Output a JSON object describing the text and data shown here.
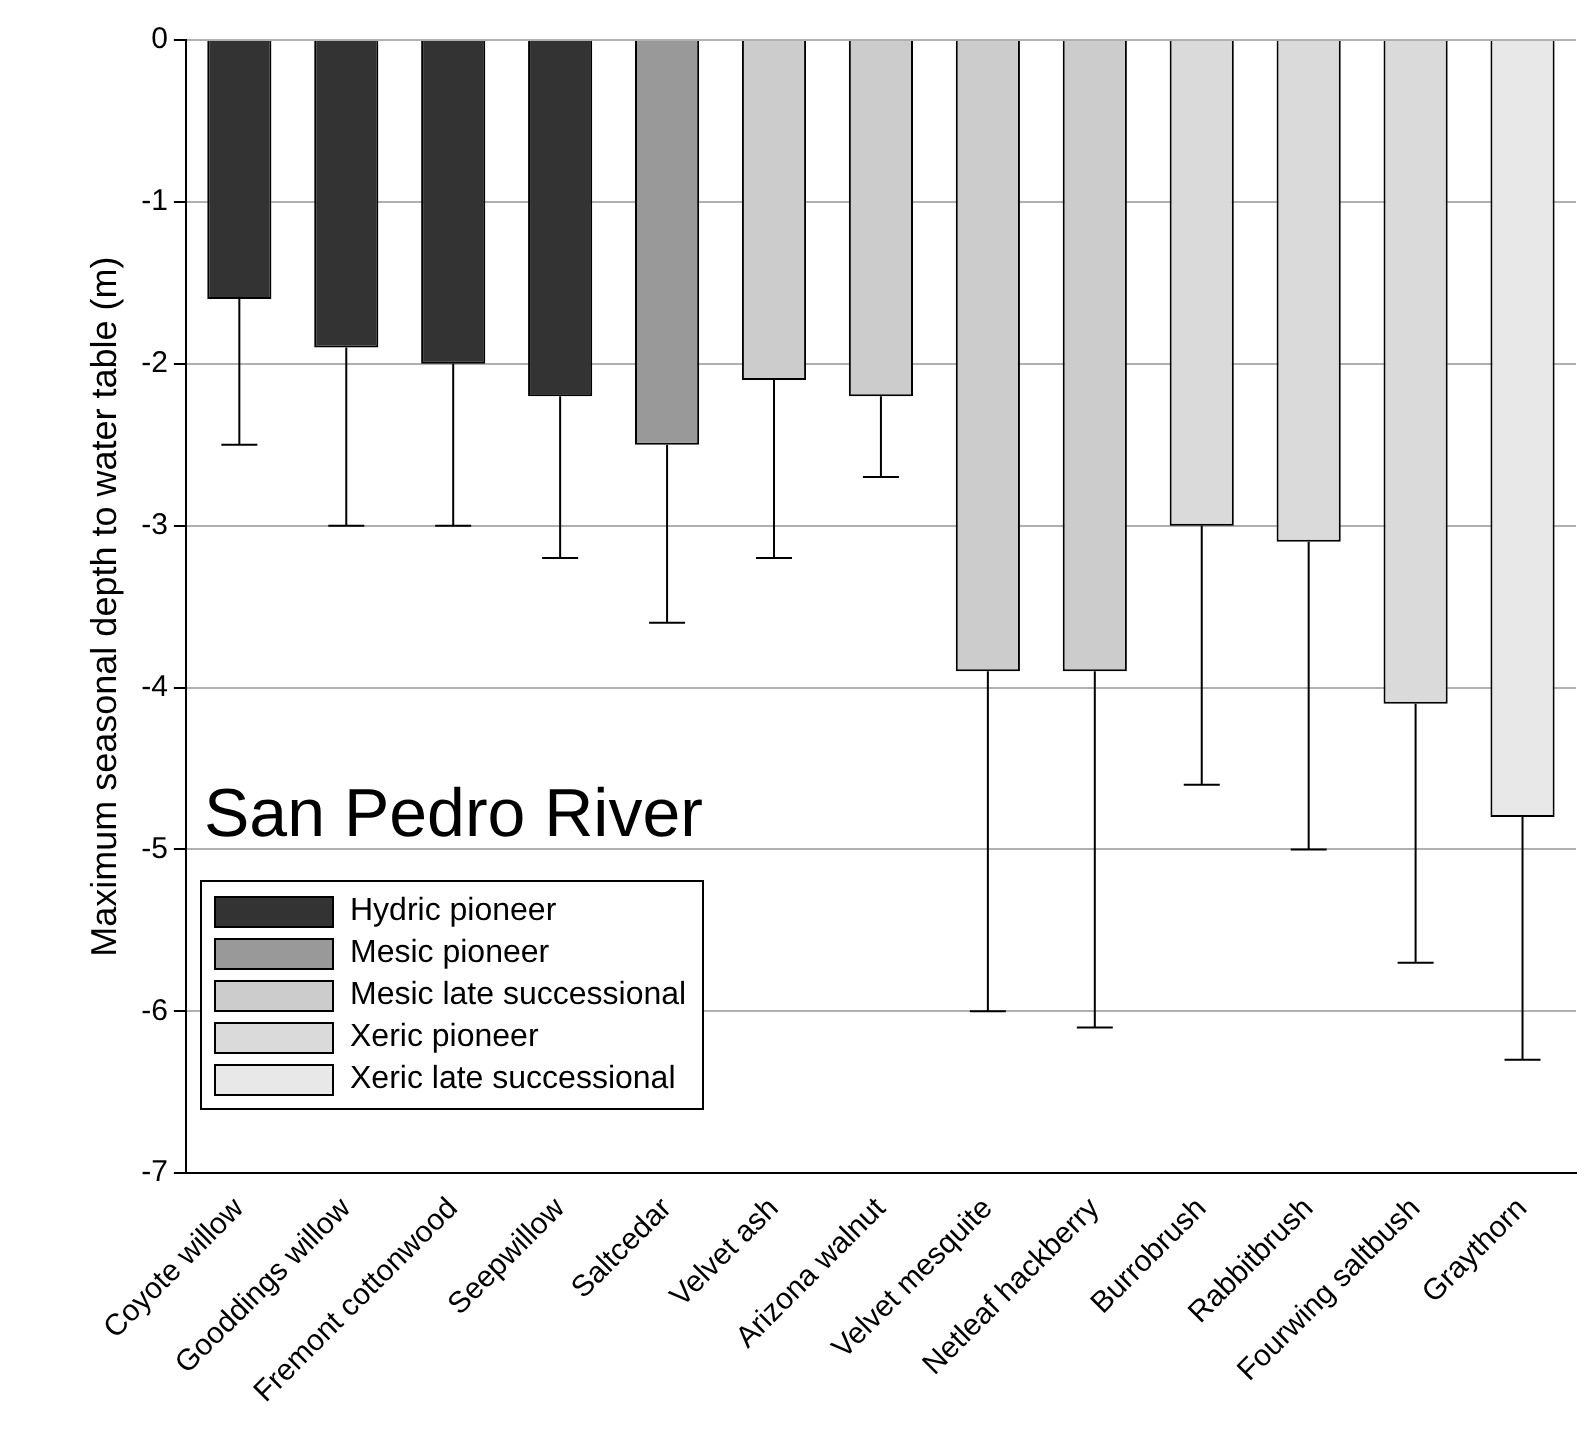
{
  "chart_data": {
    "type": "bar",
    "title": "San Pedro River",
    "ylabel": "Maximum seasonal depth to water table (m)",
    "categories": [
      "Coyote willow",
      "Gooddings willow",
      "Fremont cottonwood",
      "Seepwillow",
      "Saltcedar",
      "Velvet ash",
      "Arizona walnut",
      "Velvet mesquite",
      "Netleaf hackberry",
      "Burrobrush",
      "Rabbitbrush",
      "Fourwing saltbush",
      "Graythorn"
    ],
    "series": [
      {
        "name": "Hydric pioneer",
        "color": "#333333",
        "values": [
          -1.6,
          -1.9,
          -2.0,
          -2.2,
          null,
          null,
          null,
          null,
          null,
          null,
          null,
          null,
          null
        ],
        "errors": [
          [
            -2.5,
            -1.6
          ],
          [
            -3.0,
            -1.9
          ],
          [
            -3.0,
            -2.0
          ],
          [
            -3.2,
            -2.2
          ],
          null,
          null,
          null,
          null,
          null,
          null,
          null,
          null,
          null
        ]
      },
      {
        "name": "Mesic pioneer",
        "color": "#999999",
        "values": [
          null,
          null,
          null,
          null,
          -2.5,
          null,
          null,
          null,
          null,
          null,
          null,
          null,
          null
        ],
        "errors": [
          null,
          null,
          null,
          null,
          [
            -3.6,
            -2.5
          ],
          null,
          null,
          null,
          null,
          null,
          null,
          null,
          null
        ]
      },
      {
        "name": "Mesic late successional",
        "color": "#cccccc",
        "values": [
          null,
          null,
          null,
          null,
          null,
          -2.1,
          -2.2,
          -3.9,
          -3.9,
          null,
          null,
          null,
          null
        ],
        "errors": [
          null,
          null,
          null,
          null,
          null,
          [
            -3.2,
            -2.1
          ],
          [
            -2.7,
            -2.2
          ],
          [
            -6.0,
            -3.9
          ],
          [
            -6.1,
            -3.9
          ],
          null,
          null,
          null,
          null
        ]
      },
      {
        "name": "Xeric pioneer",
        "color": "#dadada",
        "values": [
          null,
          null,
          null,
          null,
          null,
          null,
          null,
          null,
          null,
          -3.0,
          -3.1,
          -4.1,
          null
        ],
        "errors": [
          null,
          null,
          null,
          null,
          null,
          null,
          null,
          null,
          null,
          [
            -4.6,
            -3.0
          ],
          [
            -5.0,
            -3.1
          ],
          [
            -5.7,
            -4.1
          ],
          null
        ]
      },
      {
        "name": "Xeric late successional",
        "color": "#e8e8e8",
        "values": [
          null,
          null,
          null,
          null,
          null,
          null,
          null,
          null,
          null,
          null,
          null,
          null,
          -4.8
        ],
        "errors": [
          null,
          null,
          null,
          null,
          null,
          null,
          null,
          null,
          null,
          null,
          null,
          null,
          [
            -6.3,
            -4.8
          ]
        ]
      }
    ],
    "ylim": [
      -7,
      0
    ],
    "yticks": [
      -7,
      -6,
      -5,
      -4,
      -3,
      -2,
      -1,
      0
    ],
    "grid": "y",
    "legend": "bottom left"
  }
}
